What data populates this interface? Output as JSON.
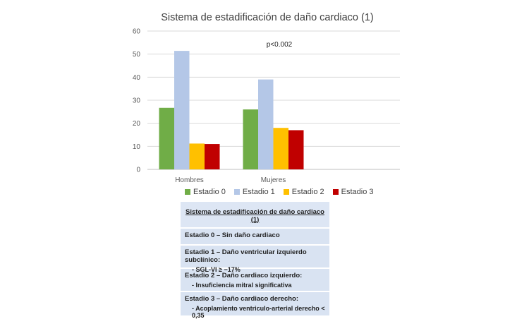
{
  "chart_data": {
    "type": "bar",
    "title": "Sistema de estadificación de daño cardiaco (1)",
    "categories": [
      "Hombres",
      "Mujeres"
    ],
    "series": [
      {
        "name": "Estadio 0",
        "color": "#70ad47",
        "values": [
          26.7,
          26
        ]
      },
      {
        "name": "Estadio 1",
        "color": "#b4c7e7",
        "values": [
          51.4,
          39
        ]
      },
      {
        "name": "Estadio 2",
        "color": "#ffc000",
        "values": [
          11.2,
          18
        ]
      },
      {
        "name": "Estadio 3",
        "color": "#c00000",
        "values": [
          11,
          17
        ]
      }
    ],
    "ylim": [
      0,
      60
    ],
    "yticks": [
      0,
      10,
      20,
      30,
      40,
      50,
      60
    ],
    "grid": true,
    "legend_position": "bottom",
    "annotation": "p<0.002"
  },
  "info_table": {
    "title": "Sistema de estadificación de daño cardiaco (1)",
    "rows": [
      {
        "line1": "Estadio 0 – Sin daño cardiaco",
        "line2": ""
      },
      {
        "line1": "Estadio 1 – Daño ventricular izquierdo subclínico:",
        "line2": "- SGL-VI ≥ −17%"
      },
      {
        "line1": "Estadio 2 – Daño cardiaco izquierdo:",
        "line2": "- Insuficiencia mitral significativa"
      },
      {
        "line1": "Estadio 3 – Daño cardiaco derecho:",
        "line2": "- Acoplamiento ventriculo-arterial derecho < 0,35"
      }
    ]
  }
}
